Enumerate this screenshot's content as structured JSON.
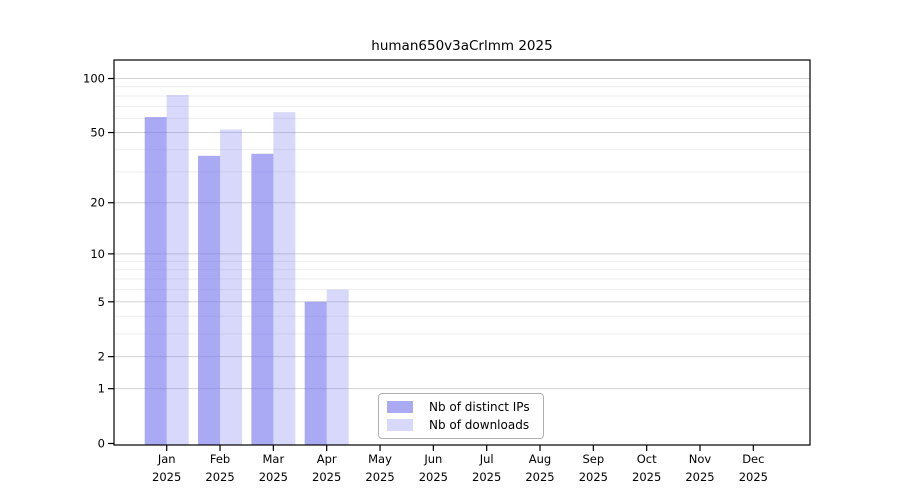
{
  "title": "human650v3aCrlmm 2025",
  "chart_data": {
    "type": "bar",
    "title": "human650v3aCrlmm 2025",
    "year_label": "2025",
    "categories": [
      "Jan",
      "Feb",
      "Mar",
      "Apr",
      "May",
      "Jun",
      "Jul",
      "Aug",
      "Sep",
      "Oct",
      "Nov",
      "Dec"
    ],
    "series": [
      {
        "name": "Nb of distinct IPs",
        "values": [
          61,
          37,
          38,
          5,
          0,
          0,
          0,
          0,
          0,
          0,
          0,
          0
        ]
      },
      {
        "name": "Nb of downloads",
        "values": [
          81,
          52,
          65,
          6,
          0,
          0,
          0,
          0,
          0,
          0,
          0,
          0
        ]
      }
    ],
    "yscale": "log10(value+1)",
    "yticks": [
      0,
      1,
      2,
      5,
      10,
      20,
      50,
      100
    ],
    "grid_major_values": [
      1,
      2,
      5,
      10,
      20,
      50,
      100
    ],
    "grid_minor_values": [
      3,
      4,
      6,
      7,
      8,
      9,
      30,
      40,
      60,
      70,
      80,
      90
    ],
    "ylim": [
      0,
      110
    ],
    "grid": "on",
    "legend_position": "bottom-center"
  },
  "colors": {
    "ips_bar": "rgba(119,119,238,0.63)",
    "downloads_bar": "rgba(119,119,238,0.29)",
    "grid_major": "#d2d2d2",
    "grid_minor": "#ededed",
    "axis": "#000000",
    "text": "#000000",
    "legend_border": "#b0b0b0"
  }
}
